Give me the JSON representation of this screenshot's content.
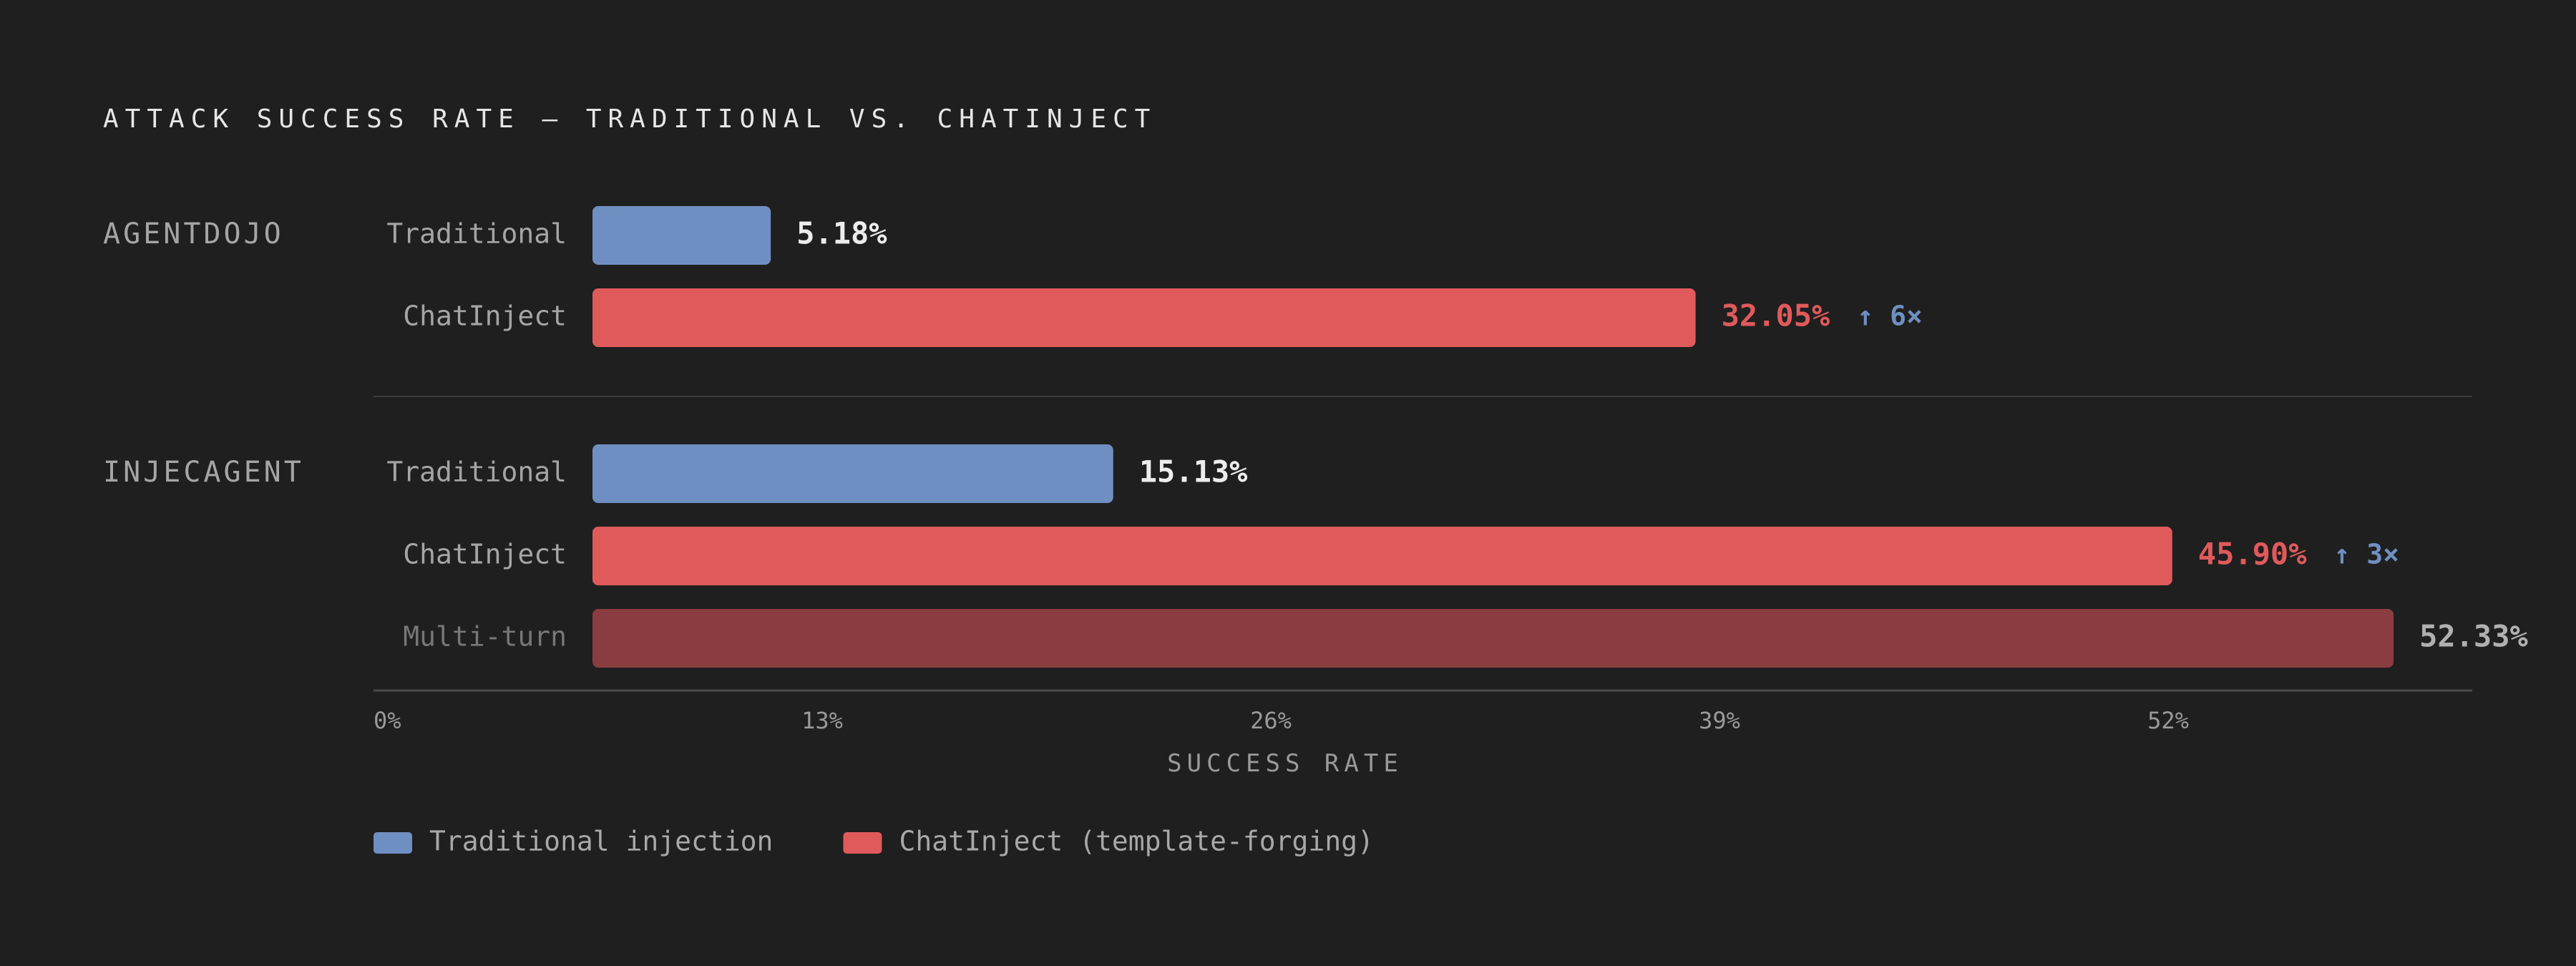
{
  "chart_data": {
    "type": "bar",
    "orientation": "horizontal",
    "title": "ATTACK SUCCESS RATE — TRADITIONAL VS. CHATINJECT",
    "xlabel": "SUCCESS RATE",
    "xlim": [
      0,
      59
    ],
    "x_ticks": [
      {
        "value": 0,
        "label": "0%"
      },
      {
        "value": 13,
        "label": "13%"
      },
      {
        "value": 26,
        "label": "26%"
      },
      {
        "value": 39,
        "label": "39%"
      },
      {
        "value": 52,
        "label": "52%"
      }
    ],
    "groups": [
      {
        "name": "AGENTDOJO",
        "rows": [
          {
            "label": "Traditional",
            "value": 5.18,
            "value_label": "5.18%",
            "series": "traditional",
            "multiplier": ""
          },
          {
            "label": "ChatInject",
            "value": 32.05,
            "value_label": "32.05%",
            "series": "chatinject",
            "multiplier": "↑ 6×"
          }
        ]
      },
      {
        "name": "INJECAGENT",
        "rows": [
          {
            "label": "Traditional",
            "value": 15.13,
            "value_label": "15.13%",
            "series": "traditional",
            "multiplier": ""
          },
          {
            "label": "ChatInject",
            "value": 45.9,
            "value_label": "45.90%",
            "series": "chatinject",
            "multiplier": "↑ 3×"
          },
          {
            "label": "Multi-turn",
            "value": 52.33,
            "value_label": "52.33%",
            "series": "multiturn",
            "multiplier": ""
          }
        ]
      }
    ],
    "legend": {
      "position": "bottom-left",
      "items": [
        {
          "label": "Traditional injection",
          "series": "traditional"
        },
        {
          "label": "ChatInject (template-forging)",
          "series": "chatinject"
        }
      ]
    },
    "colors": {
      "background": "#1f1f1f",
      "traditional": "#6f8fc2",
      "chatinject": "#e05a5c",
      "multiturn": "#8a3d41",
      "traditional_value_text": "#ececec",
      "chatinject_value_text": "#e05a5c",
      "multiturn_value_text": "#b0b0b0",
      "multiplier_text": "#6f8fc2",
      "row_label": "#a5a5a5",
      "row_label_muted": "#777777",
      "divider": "#3a3a3a",
      "axis_line": "#4a4a4a"
    }
  }
}
